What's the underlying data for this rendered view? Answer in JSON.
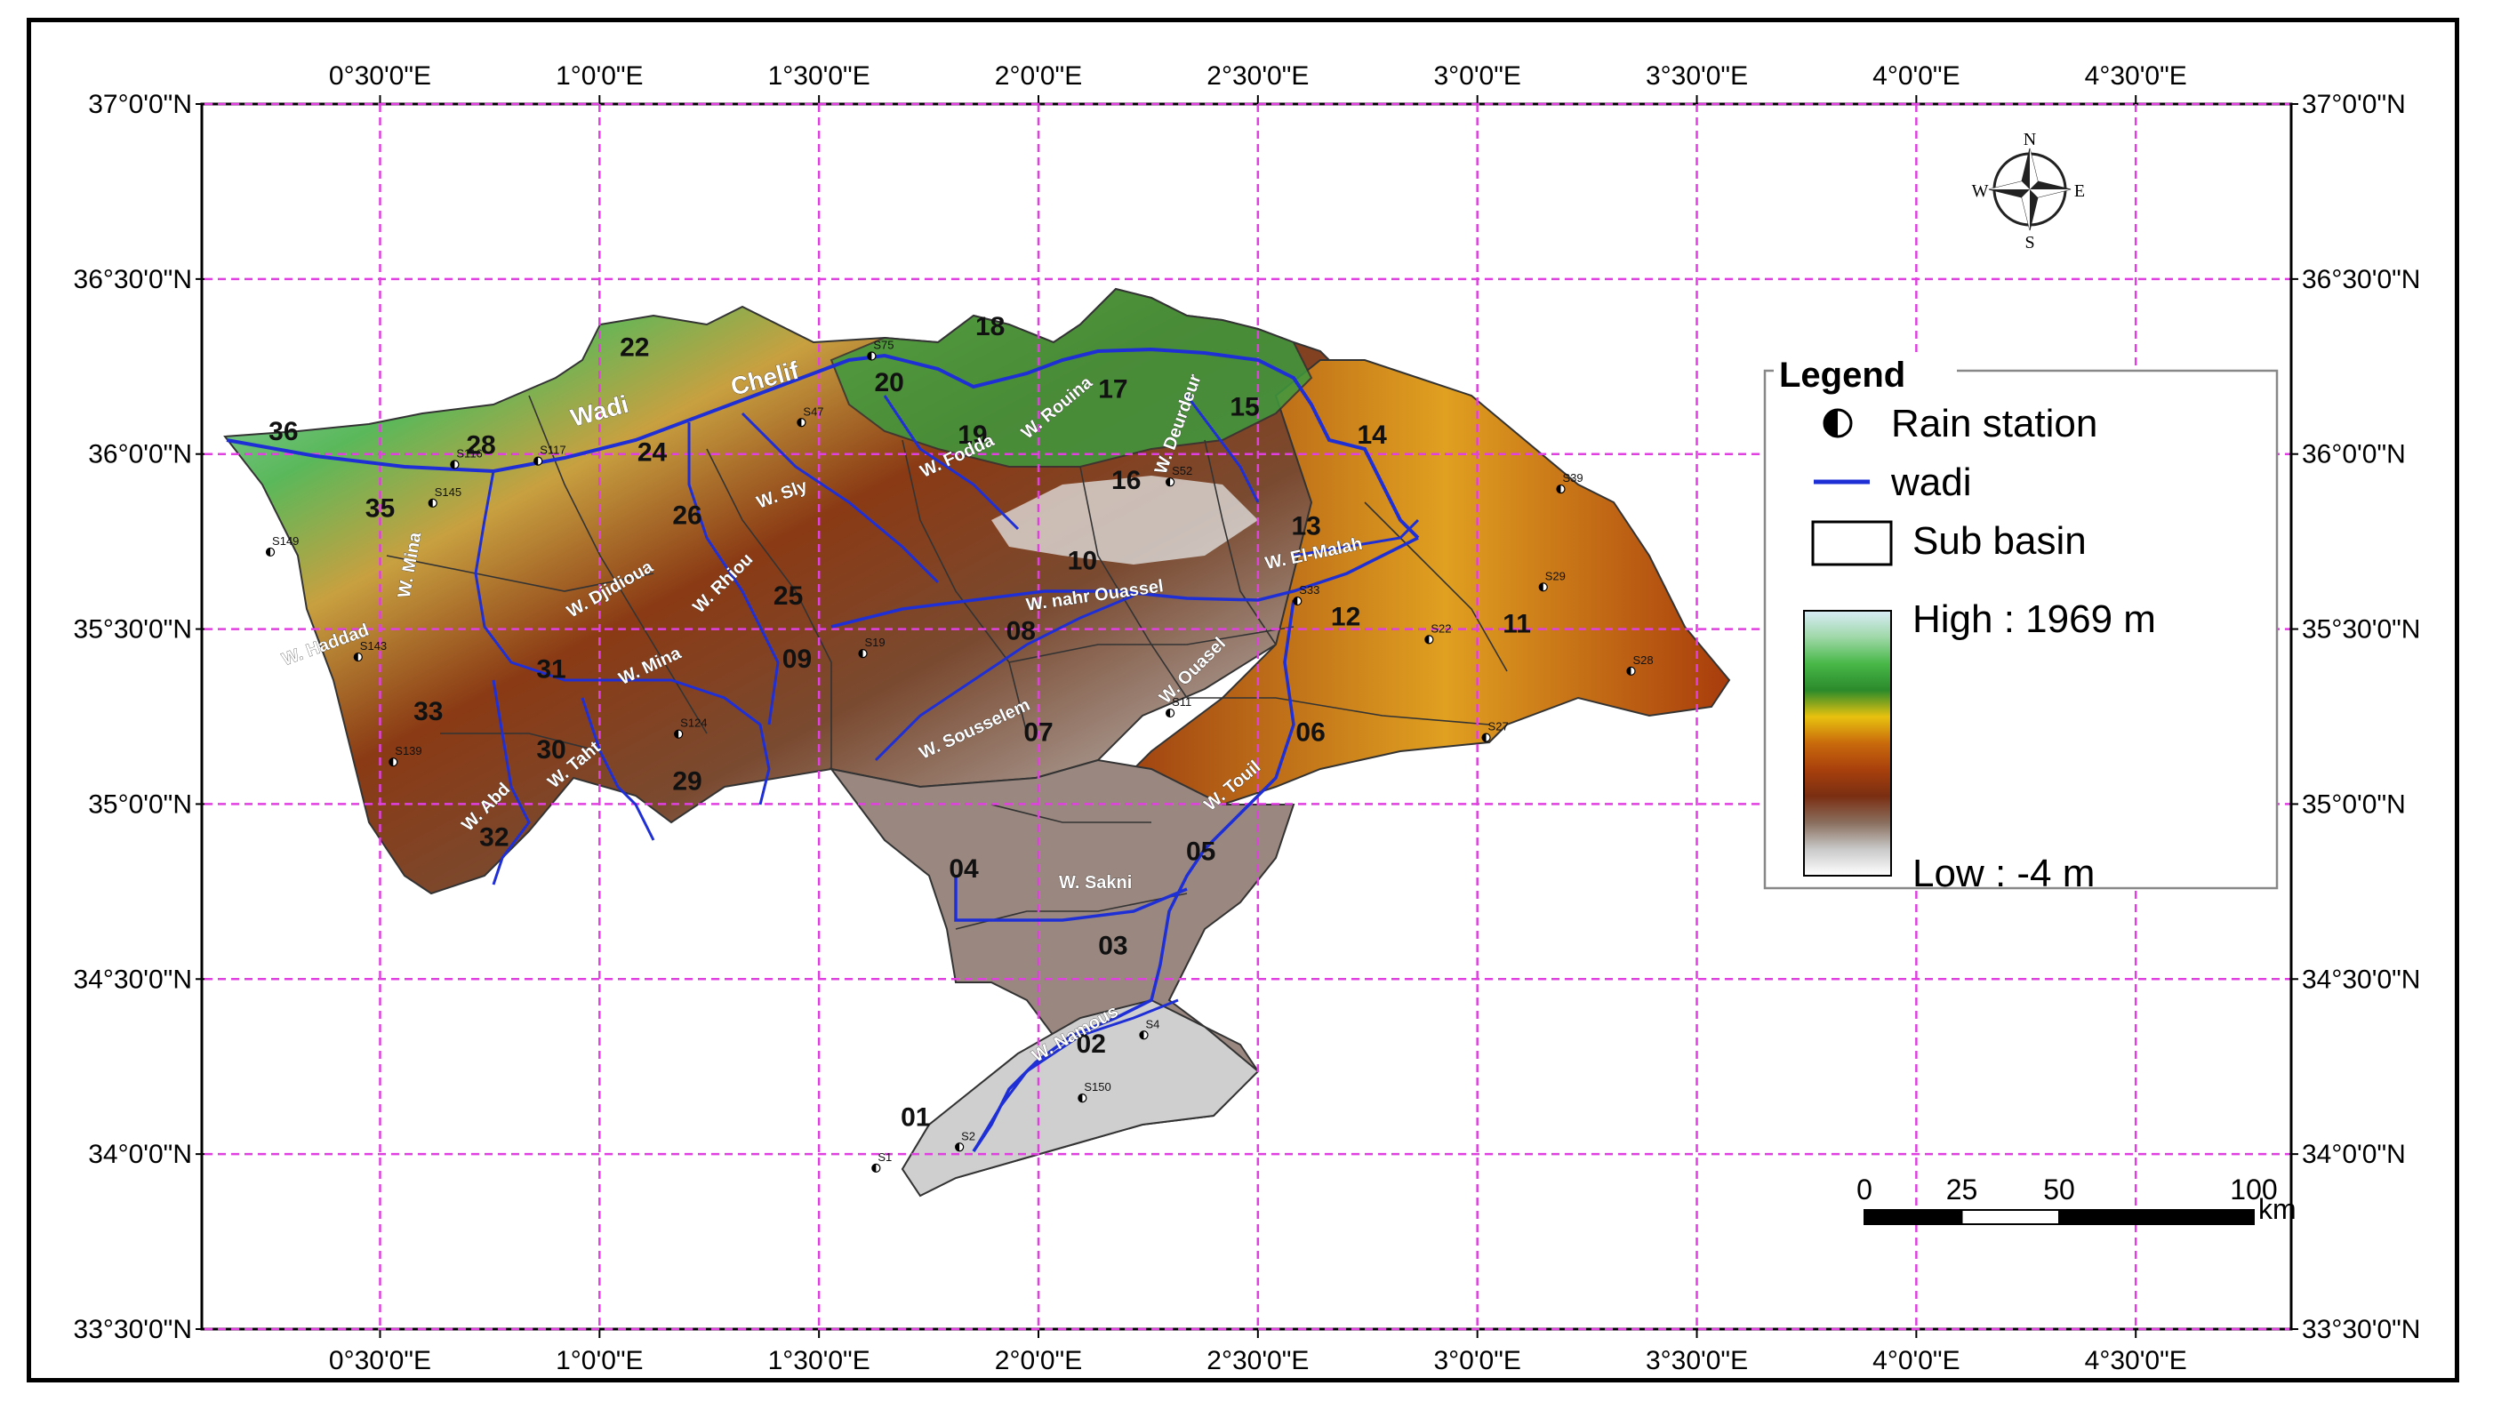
{
  "map": {
    "extent": {
      "lon_min": 0.1,
      "lon_max": 4.85,
      "lat_min": 33.5,
      "lat_max": 37.0
    },
    "graticule": {
      "lons": [
        0.5,
        1.0,
        1.5,
        2.0,
        2.5,
        3.0,
        3.5,
        4.0,
        4.5
      ],
      "lats": [
        33.5,
        34.0,
        34.5,
        35.0,
        35.5,
        36.0,
        36.5,
        37.0
      ],
      "lon_labels": [
        "0°30'0\"E",
        "1°0'0\"E",
        "1°30'0\"E",
        "2°0'0\"E",
        "2°30'0\"E",
        "3°0'0\"E",
        "3°30'0\"E",
        "4°0'0\"E",
        "4°30'0\"E"
      ],
      "lat_labels": [
        "33°30'0\"N",
        "34°0'0\"N",
        "34°30'0\"N",
        "35°0'0\"N",
        "35°30'0\"N",
        "36°0'0\"N",
        "36°30'0\"N",
        "37°0'0\"N"
      ],
      "color": "#e040e0"
    },
    "wadi_color": "#1f2fd6",
    "main_wadi_name": {
      "prefix": "Wadi",
      "name": "Chelif"
    },
    "sub_basins": [
      {
        "id": "01",
        "lon": 1.72,
        "lat": 34.08
      },
      {
        "id": "02",
        "lon": 2.12,
        "lat": 34.29
      },
      {
        "id": "03",
        "lon": 2.17,
        "lat": 34.57
      },
      {
        "id": "04",
        "lon": 1.83,
        "lat": 34.79
      },
      {
        "id": "05",
        "lon": 2.37,
        "lat": 34.84
      },
      {
        "id": "06",
        "lon": 2.62,
        "lat": 35.18
      },
      {
        "id": "07",
        "lon": 2.0,
        "lat": 35.18
      },
      {
        "id": "08",
        "lon": 1.96,
        "lat": 35.47
      },
      {
        "id": "09",
        "lon": 1.45,
        "lat": 35.39
      },
      {
        "id": "10",
        "lon": 2.1,
        "lat": 35.67
      },
      {
        "id": "11",
        "lon": 3.09,
        "lat": 35.49
      },
      {
        "id": "12",
        "lon": 2.7,
        "lat": 35.51
      },
      {
        "id": "13",
        "lon": 2.61,
        "lat": 35.77
      },
      {
        "id": "14",
        "lon": 2.76,
        "lat": 36.03
      },
      {
        "id": "15",
        "lon": 2.47,
        "lat": 36.11
      },
      {
        "id": "16",
        "lon": 2.2,
        "lat": 35.9
      },
      {
        "id": "17",
        "lon": 2.17,
        "lat": 36.16
      },
      {
        "id": "18",
        "lon": 1.89,
        "lat": 36.34
      },
      {
        "id": "19",
        "lon": 1.85,
        "lat": 36.03
      },
      {
        "id": "20",
        "lon": 1.66,
        "lat": 36.18
      },
      {
        "id": "22",
        "lon": 1.08,
        "lat": 36.28
      },
      {
        "id": "24",
        "lon": 1.12,
        "lat": 35.98
      },
      {
        "id": "25",
        "lon": 1.43,
        "lat": 35.57
      },
      {
        "id": "26",
        "lon": 1.2,
        "lat": 35.8
      },
      {
        "id": "28",
        "lon": 0.73,
        "lat": 36.0
      },
      {
        "id": "29",
        "lon": 1.2,
        "lat": 35.04
      },
      {
        "id": "30",
        "lon": 0.89,
        "lat": 35.13
      },
      {
        "id": "31",
        "lon": 0.89,
        "lat": 35.36
      },
      {
        "id": "32",
        "lon": 0.76,
        "lat": 34.88
      },
      {
        "id": "33",
        "lon": 0.61,
        "lat": 35.24
      },
      {
        "id": "35",
        "lon": 0.5,
        "lat": 35.82
      },
      {
        "id": "36",
        "lon": 0.28,
        "lat": 36.04
      }
    ],
    "wadi_labels": [
      {
        "text": "W. Namous",
        "lon": 2.09,
        "lat": 34.33,
        "rot": -30
      },
      {
        "text": "W. Sakni",
        "lon": 2.13,
        "lat": 34.76,
        "rot": 0
      },
      {
        "text": "W. Touil",
        "lon": 2.45,
        "lat": 35.04,
        "rot": -40
      },
      {
        "text": "W. Sousselem",
        "lon": 1.86,
        "lat": 35.2,
        "rot": -25
      },
      {
        "text": "W. Ouasel",
        "lon": 2.36,
        "lat": 35.37,
        "rot": -45
      },
      {
        "text": "W. nahr Ouassel",
        "lon": 2.13,
        "lat": 35.58,
        "rot": -8
      },
      {
        "text": "W. El-Malah",
        "lon": 2.63,
        "lat": 35.7,
        "rot": -12
      },
      {
        "text": "W. Sly",
        "lon": 1.42,
        "lat": 35.87,
        "rot": -20
      },
      {
        "text": "W. Fodda",
        "lon": 1.82,
        "lat": 35.98,
        "rot": -25
      },
      {
        "text": "W. Rouina",
        "lon": 2.05,
        "lat": 36.12,
        "rot": -40
      },
      {
        "text": "W. Deurdeur",
        "lon": 2.33,
        "lat": 36.08,
        "rot": -70
      },
      {
        "text": "W. Rhiou",
        "lon": 1.29,
        "lat": 35.62,
        "rot": -45
      },
      {
        "text": "W. Djidioua",
        "lon": 1.03,
        "lat": 35.6,
        "rot": -30
      },
      {
        "text": "W. Mina",
        "lon": 1.12,
        "lat": 35.38,
        "rot": -25
      },
      {
        "text": "W. Taht",
        "lon": 0.95,
        "lat": 35.1,
        "rot": -40
      },
      {
        "text": "W. Abd",
        "lon": 0.75,
        "lat": 34.98,
        "rot": -45
      },
      {
        "text": "W. Haddad",
        "lon": 0.38,
        "lat": 35.44,
        "rot": -20
      },
      {
        "text": "W. Mina",
        "lon": 0.58,
        "lat": 35.68,
        "rot": -80
      }
    ],
    "stations": [
      {
        "id": "S39",
        "lon": 3.19,
        "lat": 35.9
      },
      {
        "id": "S29",
        "lon": 3.15,
        "lat": 35.62
      },
      {
        "id": "S28",
        "lon": 3.35,
        "lat": 35.38
      },
      {
        "id": "S27",
        "lon": 3.02,
        "lat": 35.19
      },
      {
        "id": "S22",
        "lon": 2.89,
        "lat": 35.47
      },
      {
        "id": "S33",
        "lon": 2.59,
        "lat": 35.58
      },
      {
        "id": "S11",
        "lon": 2.3,
        "lat": 35.26
      },
      {
        "id": "S150",
        "lon": 2.1,
        "lat": 34.16
      },
      {
        "id": "S2",
        "lon": 1.82,
        "lat": 34.02
      },
      {
        "id": "S1",
        "lon": 1.63,
        "lat": 33.96
      },
      {
        "id": "S4",
        "lon": 2.24,
        "lat": 34.34
      },
      {
        "id": "S75",
        "lon": 1.62,
        "lat": 36.28
      },
      {
        "id": "S47",
        "lon": 1.46,
        "lat": 36.09
      },
      {
        "id": "S52",
        "lon": 2.3,
        "lat": 35.92
      },
      {
        "id": "S149",
        "lon": 0.25,
        "lat": 35.72
      },
      {
        "id": "S145",
        "lon": 0.62,
        "lat": 35.86
      },
      {
        "id": "S143",
        "lon": 0.45,
        "lat": 35.42
      },
      {
        "id": "S139",
        "lon": 0.53,
        "lat": 35.12
      },
      {
        "id": "S124",
        "lon": 1.18,
        "lat": 35.2
      },
      {
        "id": "S117",
        "lon": 0.86,
        "lat": 35.98
      },
      {
        "id": "S116",
        "lon": 0.67,
        "lat": 35.97
      },
      {
        "id": "S19",
        "lon": 1.6,
        "lat": 35.43
      }
    ]
  },
  "compass": {
    "n": "N",
    "e": "E",
    "s": "S",
    "w": "W"
  },
  "legend": {
    "title": "Legend",
    "rain_station": "Rain station",
    "wadi": "wadi",
    "sub_basin": "Sub basin",
    "high": "High : 1969 m",
    "low": "Low : -4 m",
    "ramp": [
      "#ffffff",
      "#c9c9c9",
      "#8a6f5e",
      "#7a2e12",
      "#a8400c",
      "#c96a0c",
      "#e8c20f",
      "#2b8a2b",
      "#48b848",
      "#9fd8a8",
      "#d8ecf8"
    ]
  },
  "scalebar": {
    "ticks": [
      "0",
      "25",
      "50",
      "100"
    ],
    "values_km": [
      0,
      25,
      50,
      100
    ],
    "unit": "km"
  }
}
